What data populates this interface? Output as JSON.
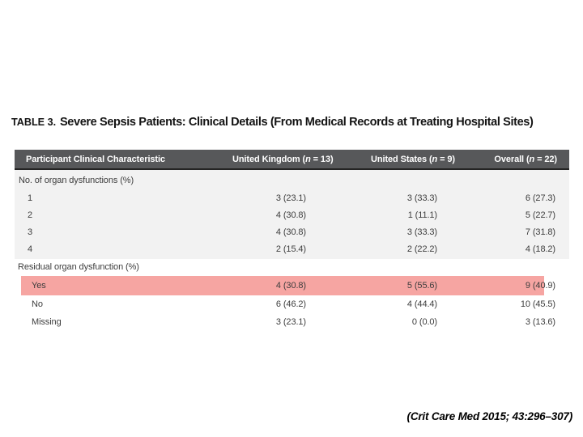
{
  "title": {
    "label": "TABLE 3.",
    "text": "Severe Sepsis Patients: Clinical Details (From Medical Records at Treating Hospital Sites)"
  },
  "table": {
    "header": {
      "characteristic": "Participant Clinical Characteristic",
      "columns": [
        {
          "pre": "United Kingdom (",
          "italic": "n",
          "post": " = 13)"
        },
        {
          "pre": "United States (",
          "italic": "n",
          "post": " = 9)"
        },
        {
          "pre": "Overall (",
          "italic": "n",
          "post": " = 22)"
        }
      ]
    },
    "sections": [
      {
        "label": "No. of organ dysfunctions (%)",
        "rows": [
          {
            "label": "1",
            "uk": "3 (23.1)",
            "us": "3 (33.3)",
            "overall": "6 (27.3)"
          },
          {
            "label": "2",
            "uk": "4 (30.8)",
            "us": "1 (11.1)",
            "overall": "5 (22.7)"
          },
          {
            "label": "3",
            "uk": "4 (30.8)",
            "us": "3 (33.3)",
            "overall": "7 (31.8)"
          },
          {
            "label": "4",
            "uk": "2 (15.4)",
            "us": "2 (22.2)",
            "overall": "4 (18.2)"
          }
        ]
      },
      {
        "label": "Residual organ dysfunction (%)",
        "rows": [
          {
            "label": "Yes",
            "uk": "4 (30.8)",
            "us": "5 (55.6)",
            "overall": "9 (40.9)",
            "highlighted": true
          },
          {
            "label": "No",
            "uk": "6 (46.2)",
            "us": "4 (44.4)",
            "overall": "10 (45.5)",
            "highlighted": false
          },
          {
            "label": "Missing",
            "uk": "3 (23.1)",
            "us": "0 (0.0)",
            "overall": "3 (13.6)",
            "highlighted": false
          }
        ]
      }
    ]
  },
  "citation": "(Crit Care Med 2015; 43:296–307)",
  "colors": {
    "header_bg": "#57585a",
    "section_alt_bg": "#f2f2f2",
    "highlight_row": "#f6a5a2",
    "header_text": "#ffffff",
    "body_text": "#3d3d3d"
  }
}
